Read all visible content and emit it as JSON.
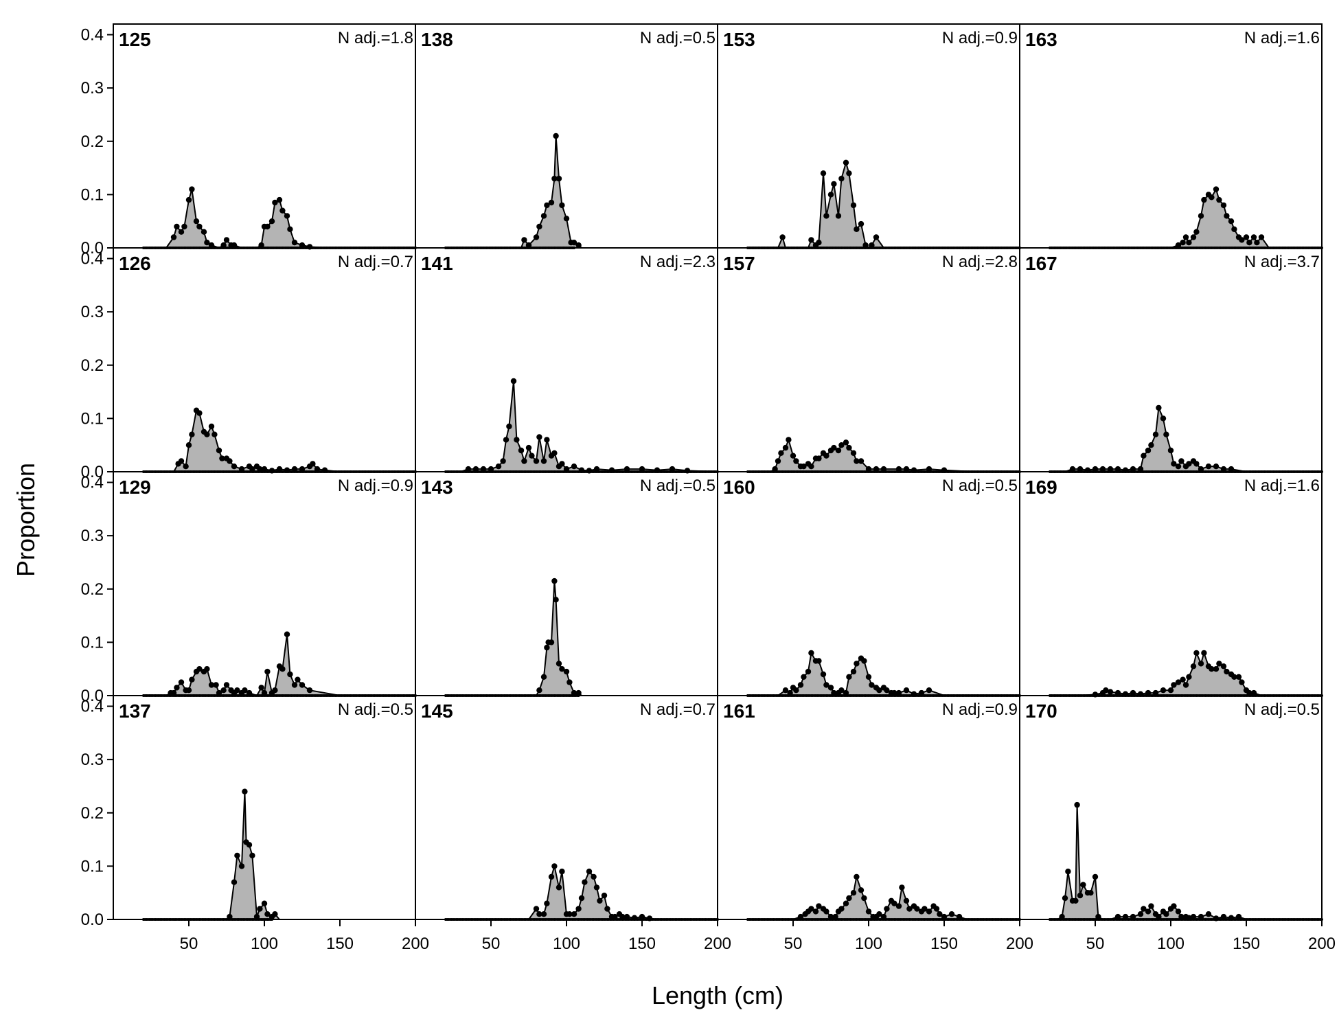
{
  "chart_data": {
    "type": "area",
    "xlabel": "Length (cm)",
    "ylabel": "Proportion",
    "xlim": [
      0,
      200
    ],
    "ylim": [
      0,
      0.42
    ],
    "x_ticks": [
      50,
      100,
      150,
      200
    ],
    "y_ticks": [
      0.0,
      0.1,
      0.2,
      0.3,
      0.4
    ],
    "y_tick_labels": [
      "0.0",
      "0.1",
      "0.2",
      "0.3",
      "0.4"
    ],
    "fill_color": "#b4b4b4",
    "line_color": "#000000",
    "panels": [
      {
        "id": "125",
        "n_adj": "N adj.=1.8",
        "row": 0,
        "col": 0,
        "x": [
          20,
          25,
          30,
          35,
          40,
          42,
          45,
          47,
          50,
          52,
          55,
          57,
          60,
          62,
          65,
          70,
          73,
          75,
          78,
          80,
          85,
          90,
          95,
          98,
          100,
          102,
          105,
          107,
          110,
          112,
          115,
          117,
          120,
          125,
          130,
          140,
          150,
          170,
          200
        ],
        "y": [
          0,
          0,
          0,
          0,
          0.02,
          0.04,
          0.03,
          0.04,
          0.09,
          0.11,
          0.05,
          0.04,
          0.03,
          0.01,
          0.005,
          0,
          0.005,
          0.015,
          0.005,
          0.005,
          0,
          0,
          0,
          0.005,
          0.04,
          0.04,
          0.05,
          0.085,
          0.09,
          0.07,
          0.06,
          0.035,
          0.01,
          0.005,
          0.002,
          0,
          0,
          0,
          0
        ]
      },
      {
        "id": "138",
        "n_adj": "N adj.=0.5",
        "row": 0,
        "col": 1,
        "x": [
          20,
          50,
          70,
          72,
          75,
          80,
          82,
          85,
          87,
          90,
          92,
          93,
          95,
          97,
          100,
          103,
          105,
          108,
          110,
          150,
          200
        ],
        "y": [
          0,
          0,
          0,
          0.015,
          0.005,
          0.02,
          0.04,
          0.06,
          0.08,
          0.085,
          0.13,
          0.21,
          0.13,
          0.08,
          0.055,
          0.01,
          0.01,
          0.005,
          0,
          0,
          0
        ],
        "last_x": 105
      },
      {
        "id": "153",
        "n_adj": "N adj.=0.9",
        "row": 0,
        "col": 2,
        "x": [
          20,
          35,
          40,
          43,
          45,
          50,
          60,
          62,
          65,
          67,
          70,
          72,
          75,
          77,
          80,
          82,
          85,
          87,
          90,
          92,
          95,
          98,
          100,
          102,
          105,
          110,
          150,
          200
        ],
        "y": [
          0,
          0,
          0,
          0.02,
          0,
          0,
          0,
          0.015,
          0.005,
          0.01,
          0.14,
          0.06,
          0.1,
          0.12,
          0.06,
          0.13,
          0.16,
          0.14,
          0.08,
          0.035,
          0.045,
          0.005,
          0,
          0.005,
          0.02,
          0,
          0,
          0
        ]
      },
      {
        "id": "163",
        "n_adj": "N adj.=1.6",
        "row": 0,
        "col": 3,
        "x": [
          20,
          80,
          100,
          105,
          108,
          110,
          112,
          115,
          117,
          120,
          122,
          125,
          127,
          130,
          132,
          135,
          137,
          140,
          142,
          145,
          147,
          150,
          152,
          155,
          157,
          160,
          165,
          200
        ],
        "y": [
          0,
          0,
          0,
          0.005,
          0.01,
          0.02,
          0.01,
          0.02,
          0.03,
          0.06,
          0.09,
          0.1,
          0.095,
          0.11,
          0.09,
          0.08,
          0.06,
          0.05,
          0.035,
          0.02,
          0.015,
          0.02,
          0.01,
          0.02,
          0.01,
          0.02,
          0,
          0
        ]
      },
      {
        "id": "126",
        "n_adj": "N adj.=0.7",
        "row": 1,
        "col": 0,
        "x": [
          20,
          40,
          43,
          45,
          48,
          50,
          52,
          55,
          57,
          60,
          62,
          65,
          67,
          70,
          72,
          75,
          77,
          80,
          85,
          90,
          92,
          95,
          97,
          100,
          105,
          110,
          115,
          120,
          125,
          130,
          132,
          135,
          140,
          150,
          160,
          180,
          200
        ],
        "y": [
          0,
          0,
          0.015,
          0.02,
          0.01,
          0.05,
          0.07,
          0.115,
          0.11,
          0.075,
          0.07,
          0.085,
          0.07,
          0.04,
          0.025,
          0.025,
          0.02,
          0.01,
          0.005,
          0.01,
          0.005,
          0.01,
          0.005,
          0.005,
          0.002,
          0.005,
          0.003,
          0.005,
          0.005,
          0.01,
          0.015,
          0.005,
          0.003,
          0,
          0,
          0,
          0
        ]
      },
      {
        "id": "141",
        "n_adj": "N adj.=2.3",
        "row": 1,
        "col": 1,
        "x": [
          20,
          30,
          35,
          40,
          45,
          50,
          55,
          58,
          60,
          62,
          65,
          67,
          70,
          72,
          75,
          77,
          80,
          82,
          85,
          87,
          90,
          92,
          95,
          97,
          100,
          105,
          110,
          115,
          120,
          130,
          140,
          150,
          160,
          170,
          180,
          200
        ],
        "y": [
          0,
          0,
          0.005,
          0.005,
          0.005,
          0.005,
          0.01,
          0.02,
          0.06,
          0.085,
          0.17,
          0.06,
          0.04,
          0.02,
          0.045,
          0.03,
          0.02,
          0.065,
          0.02,
          0.06,
          0.03,
          0.035,
          0.01,
          0.015,
          0.005,
          0.01,
          0.003,
          0.002,
          0.005,
          0.003,
          0.005,
          0.005,
          0.003,
          0.005,
          0.002,
          0
        ]
      },
      {
        "id": "157",
        "n_adj": "N adj.=2.8",
        "row": 1,
        "col": 2,
        "x": [
          20,
          35,
          38,
          40,
          42,
          45,
          47,
          50,
          52,
          55,
          57,
          60,
          62,
          65,
          67,
          70,
          72,
          75,
          77,
          80,
          82,
          85,
          87,
          90,
          92,
          95,
          100,
          105,
          110,
          120,
          125,
          130,
          140,
          150,
          170,
          200
        ],
        "y": [
          0,
          0,
          0.005,
          0.02,
          0.035,
          0.045,
          0.06,
          0.03,
          0.02,
          0.01,
          0.01,
          0.015,
          0.01,
          0.025,
          0.025,
          0.035,
          0.03,
          0.04,
          0.045,
          0.04,
          0.05,
          0.055,
          0.045,
          0.035,
          0.02,
          0.02,
          0.005,
          0.005,
          0.005,
          0.005,
          0.005,
          0.003,
          0.005,
          0.003,
          0,
          0
        ]
      },
      {
        "id": "167",
        "n_adj": "N adj.=3.7",
        "row": 1,
        "col": 3,
        "x": [
          20,
          30,
          35,
          40,
          45,
          50,
          55,
          60,
          65,
          70,
          75,
          80,
          82,
          85,
          87,
          90,
          92,
          95,
          97,
          100,
          102,
          105,
          107,
          110,
          112,
          115,
          117,
          120,
          125,
          130,
          135,
          140,
          150,
          200
        ],
        "y": [
          0,
          0,
          0.005,
          0.005,
          0.003,
          0.005,
          0.005,
          0.005,
          0.005,
          0.003,
          0.005,
          0.005,
          0.03,
          0.04,
          0.05,
          0.07,
          0.12,
          0.1,
          0.07,
          0.04,
          0.015,
          0.01,
          0.02,
          0.01,
          0.015,
          0.02,
          0.015,
          0.005,
          0.01,
          0.01,
          0.005,
          0.005,
          0,
          0
        ]
      },
      {
        "id": "129",
        "n_adj": "N adj.=0.9",
        "row": 2,
        "col": 0,
        "x": [
          20,
          35,
          38,
          40,
          42,
          45,
          48,
          50,
          52,
          55,
          57,
          60,
          62,
          65,
          68,
          70,
          73,
          75,
          78,
          80,
          82,
          85,
          87,
          90,
          95,
          98,
          100,
          102,
          105,
          107,
          110,
          112,
          115,
          117,
          120,
          122,
          125,
          130,
          150,
          200
        ],
        "y": [
          0,
          0,
          0.005,
          0.005,
          0.015,
          0.025,
          0.01,
          0.01,
          0.03,
          0.045,
          0.05,
          0.045,
          0.05,
          0.02,
          0.02,
          0.005,
          0.01,
          0.02,
          0.01,
          0.005,
          0.01,
          0.005,
          0.01,
          0.005,
          0,
          0.015,
          0.005,
          0.045,
          0.005,
          0.01,
          0.055,
          0.05,
          0.115,
          0.04,
          0.02,
          0.03,
          0.02,
          0.01,
          0,
          0
        ]
      },
      {
        "id": "143",
        "n_adj": "N adj.=0.5",
        "row": 2,
        "col": 1,
        "x": [
          20,
          50,
          70,
          80,
          82,
          85,
          87,
          88,
          90,
          92,
          93,
          95,
          97,
          100,
          102,
          105,
          108,
          110,
          150,
          200
        ],
        "y": [
          0,
          0,
          0,
          0,
          0.01,
          0.035,
          0.09,
          0.1,
          0.1,
          0.215,
          0.18,
          0.06,
          0.05,
          0.045,
          0.025,
          0.005,
          0.005,
          0,
          0,
          0
        ],
        "last_x": 108
      },
      {
        "id": "160",
        "n_adj": "N adj.=0.5",
        "row": 2,
        "col": 2,
        "x": [
          20,
          40,
          45,
          48,
          50,
          52,
          55,
          57,
          60,
          62,
          65,
          67,
          70,
          72,
          75,
          77,
          80,
          82,
          85,
          87,
          90,
          92,
          95,
          97,
          100,
          102,
          105,
          107,
          110,
          112,
          115,
          117,
          120,
          125,
          130,
          135,
          140,
          150,
          200
        ],
        "y": [
          0,
          0,
          0.01,
          0.005,
          0.015,
          0.01,
          0.02,
          0.035,
          0.045,
          0.08,
          0.065,
          0.065,
          0.04,
          0.02,
          0.015,
          0.005,
          0.005,
          0.01,
          0.005,
          0.035,
          0.045,
          0.06,
          0.07,
          0.065,
          0.035,
          0.02,
          0.015,
          0.01,
          0.015,
          0.01,
          0.005,
          0.005,
          0.005,
          0.01,
          0.003,
          0.005,
          0.01,
          0,
          0
        ]
      },
      {
        "id": "169",
        "n_adj": "N adj.=1.6",
        "row": 2,
        "col": 3,
        "x": [
          20,
          40,
          50,
          55,
          57,
          60,
          65,
          70,
          75,
          80,
          85,
          90,
          95,
          100,
          102,
          105,
          108,
          110,
          112,
          115,
          117,
          120,
          122,
          125,
          127,
          130,
          132,
          135,
          137,
          140,
          142,
          145,
          147,
          150,
          152,
          155,
          160,
          200
        ],
        "y": [
          0,
          0,
          0.002,
          0.005,
          0.01,
          0.007,
          0.005,
          0.003,
          0.005,
          0.003,
          0.005,
          0.005,
          0.01,
          0.01,
          0.02,
          0.025,
          0.03,
          0.02,
          0.035,
          0.055,
          0.08,
          0.06,
          0.08,
          0.055,
          0.05,
          0.05,
          0.06,
          0.055,
          0.045,
          0.04,
          0.035,
          0.035,
          0.025,
          0.01,
          0.005,
          0.005,
          0,
          0
        ]
      },
      {
        "id": "137",
        "n_adj": "N adj.=0.5",
        "row": 3,
        "col": 0,
        "x": [
          20,
          50,
          70,
          75,
          77,
          80,
          82,
          85,
          87,
          88,
          90,
          92,
          95,
          97,
          100,
          102,
          105,
          107,
          110,
          150,
          200
        ],
        "y": [
          0,
          0,
          0,
          0,
          0.005,
          0.07,
          0.12,
          0.1,
          0.24,
          0.145,
          0.14,
          0.12,
          0.005,
          0.02,
          0.03,
          0.01,
          0.005,
          0.01,
          0,
          0,
          0
        ],
        "last_x": 105
      },
      {
        "id": "145",
        "n_adj": "N adj.=0.7",
        "row": 3,
        "col": 1,
        "x": [
          20,
          50,
          75,
          80,
          82,
          85,
          87,
          90,
          92,
          95,
          97,
          100,
          102,
          105,
          108,
          110,
          112,
          115,
          118,
          120,
          122,
          125,
          127,
          130,
          132,
          135,
          137,
          140,
          145,
          150,
          155,
          160,
          200
        ],
        "y": [
          0,
          0,
          0,
          0.02,
          0.01,
          0.01,
          0.03,
          0.08,
          0.1,
          0.06,
          0.09,
          0.01,
          0.01,
          0.01,
          0.02,
          0.04,
          0.07,
          0.09,
          0.08,
          0.06,
          0.035,
          0.045,
          0.02,
          0.005,
          0.005,
          0.01,
          0.005,
          0.005,
          0.003,
          0.005,
          0.002,
          0,
          0
        ]
      },
      {
        "id": "161",
        "n_adj": "N adj.=0.9",
        "row": 3,
        "col": 2,
        "x": [
          20,
          50,
          55,
          58,
          60,
          62,
          65,
          67,
          70,
          72,
          75,
          78,
          80,
          82,
          85,
          87,
          90,
          92,
          95,
          97,
          100,
          103,
          105,
          107,
          110,
          112,
          115,
          117,
          120,
          122,
          125,
          127,
          130,
          132,
          135,
          137,
          140,
          143,
          145,
          147,
          150,
          155,
          160,
          165,
          200
        ],
        "y": [
          0,
          0,
          0.005,
          0.01,
          0.015,
          0.02,
          0.015,
          0.025,
          0.02,
          0.015,
          0.005,
          0.005,
          0.015,
          0.02,
          0.03,
          0.04,
          0.05,
          0.08,
          0.055,
          0.04,
          0.015,
          0.005,
          0.005,
          0.01,
          0.005,
          0.02,
          0.035,
          0.03,
          0.025,
          0.06,
          0.035,
          0.02,
          0.025,
          0.02,
          0.015,
          0.02,
          0.015,
          0.025,
          0.02,
          0.01,
          0.005,
          0.01,
          0.005,
          0,
          0
        ]
      },
      {
        "id": "170",
        "n_adj": "N adj.=0.5",
        "row": 3,
        "col": 3,
        "x": [
          20,
          25,
          28,
          30,
          32,
          35,
          37,
          38,
          40,
          42,
          45,
          47,
          50,
          52,
          55,
          60,
          65,
          70,
          75,
          80,
          82,
          85,
          87,
          90,
          92,
          95,
          97,
          100,
          102,
          105,
          107,
          110,
          112,
          115,
          120,
          125,
          130,
          135,
          140,
          145,
          150,
          200
        ],
        "y": [
          0,
          0,
          0.005,
          0.04,
          0.09,
          0.035,
          0.035,
          0.215,
          0.045,
          0.065,
          0.05,
          0.05,
          0.08,
          0.005,
          0,
          0,
          0.005,
          0.005,
          0.005,
          0.01,
          0.02,
          0.015,
          0.025,
          0.01,
          0.005,
          0.015,
          0.01,
          0.02,
          0.025,
          0.015,
          0.005,
          0.005,
          0.003,
          0.005,
          0.005,
          0.01,
          0.002,
          0.005,
          0.003,
          0.005,
          0,
          0
        ]
      }
    ]
  }
}
